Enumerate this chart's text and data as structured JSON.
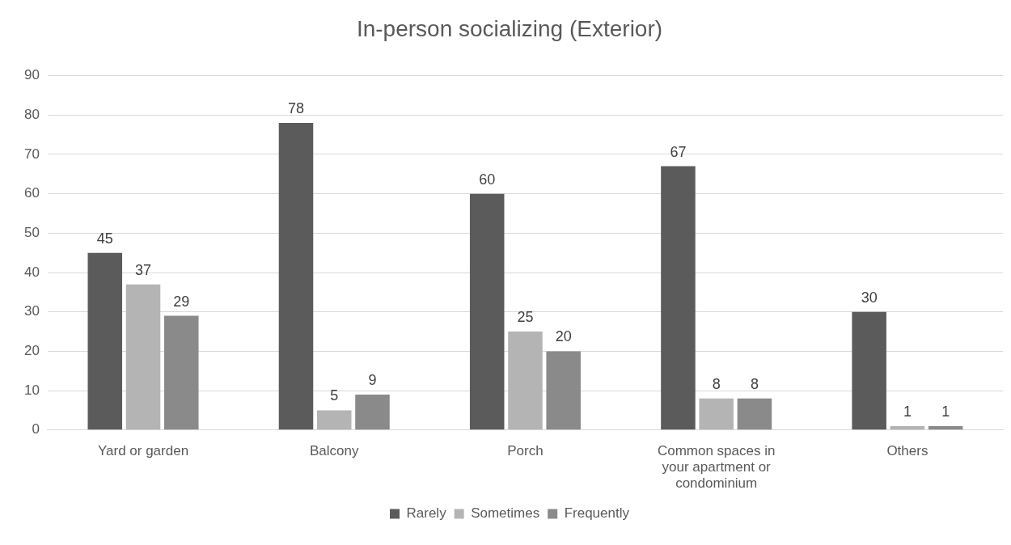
{
  "chart_data": {
    "type": "bar",
    "title": "In-person socializing (Exterior)",
    "categories": [
      "Yard or garden",
      "Balcony",
      "Porch",
      "Common spaces in your apartment or condominium",
      "Others"
    ],
    "series": [
      {
        "name": "Rarely",
        "color": "#5b5b5b",
        "values": [
          45,
          78,
          60,
          67,
          30
        ]
      },
      {
        "name": "Sometimes",
        "color": "#b4b4b4",
        "values": [
          37,
          5,
          25,
          8,
          1
        ]
      },
      {
        "name": "Frequently",
        "color": "#8a8a8a",
        "values": [
          29,
          9,
          20,
          8,
          1
        ]
      }
    ],
    "ylim": [
      0,
      90
    ],
    "yticks": [
      0,
      10,
      20,
      30,
      40,
      50,
      60,
      70,
      80,
      90
    ],
    "grid": "y",
    "legend": "bottom",
    "data_labels": true
  }
}
